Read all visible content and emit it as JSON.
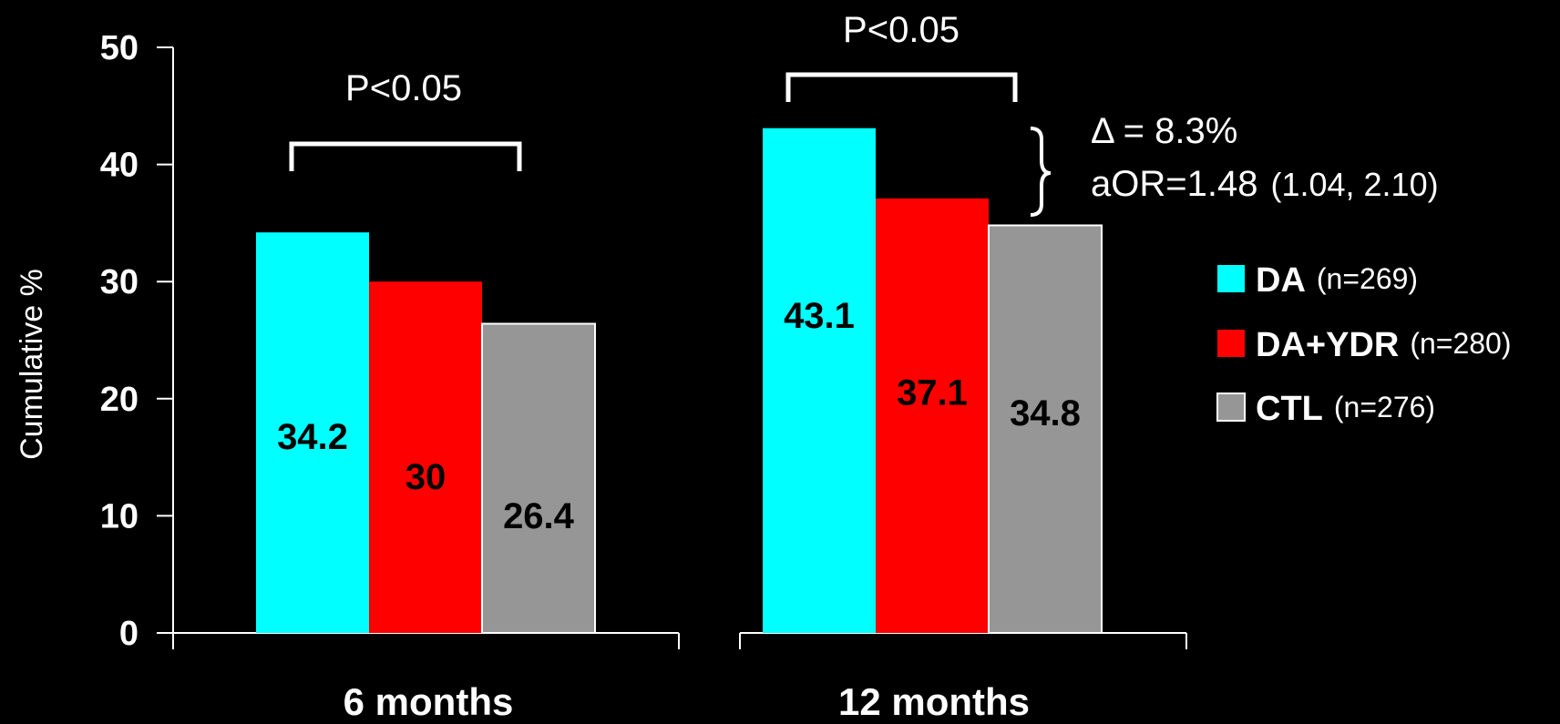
{
  "chart_data": {
    "type": "bar",
    "ylabel": "Cumulative %",
    "xlabel": "",
    "ylim": [
      0,
      50
    ],
    "yticks": [
      "0",
      "10",
      "20",
      "30",
      "40",
      "50"
    ],
    "categories": [
      "6 months",
      "12 months"
    ],
    "series": [
      {
        "name": "DA",
        "n": "(n=269)",
        "color": "#00FFFF",
        "values": [
          34.2,
          43.1
        ],
        "labels": [
          "34.2",
          "43.1"
        ]
      },
      {
        "name": "DA+YDR",
        "n": "(n=280)",
        "color": "#FF0000",
        "values": [
          30,
          37.1
        ],
        "labels": [
          "30",
          "37.1"
        ]
      },
      {
        "name": "CTL",
        "n": "(n=276)",
        "color": "#969696",
        "values": [
          26.4,
          34.8
        ],
        "labels": [
          "26.4",
          "34.8"
        ]
      }
    ],
    "annotations": {
      "pvalue_6": "P<0.05",
      "pvalue_12": "P<0.05",
      "delta": "Δ = 8.3%",
      "aor_main": "aOR=1.48",
      "aor_ci": "(1.04, 2.10)"
    },
    "legend": "right",
    "grid": false
  }
}
